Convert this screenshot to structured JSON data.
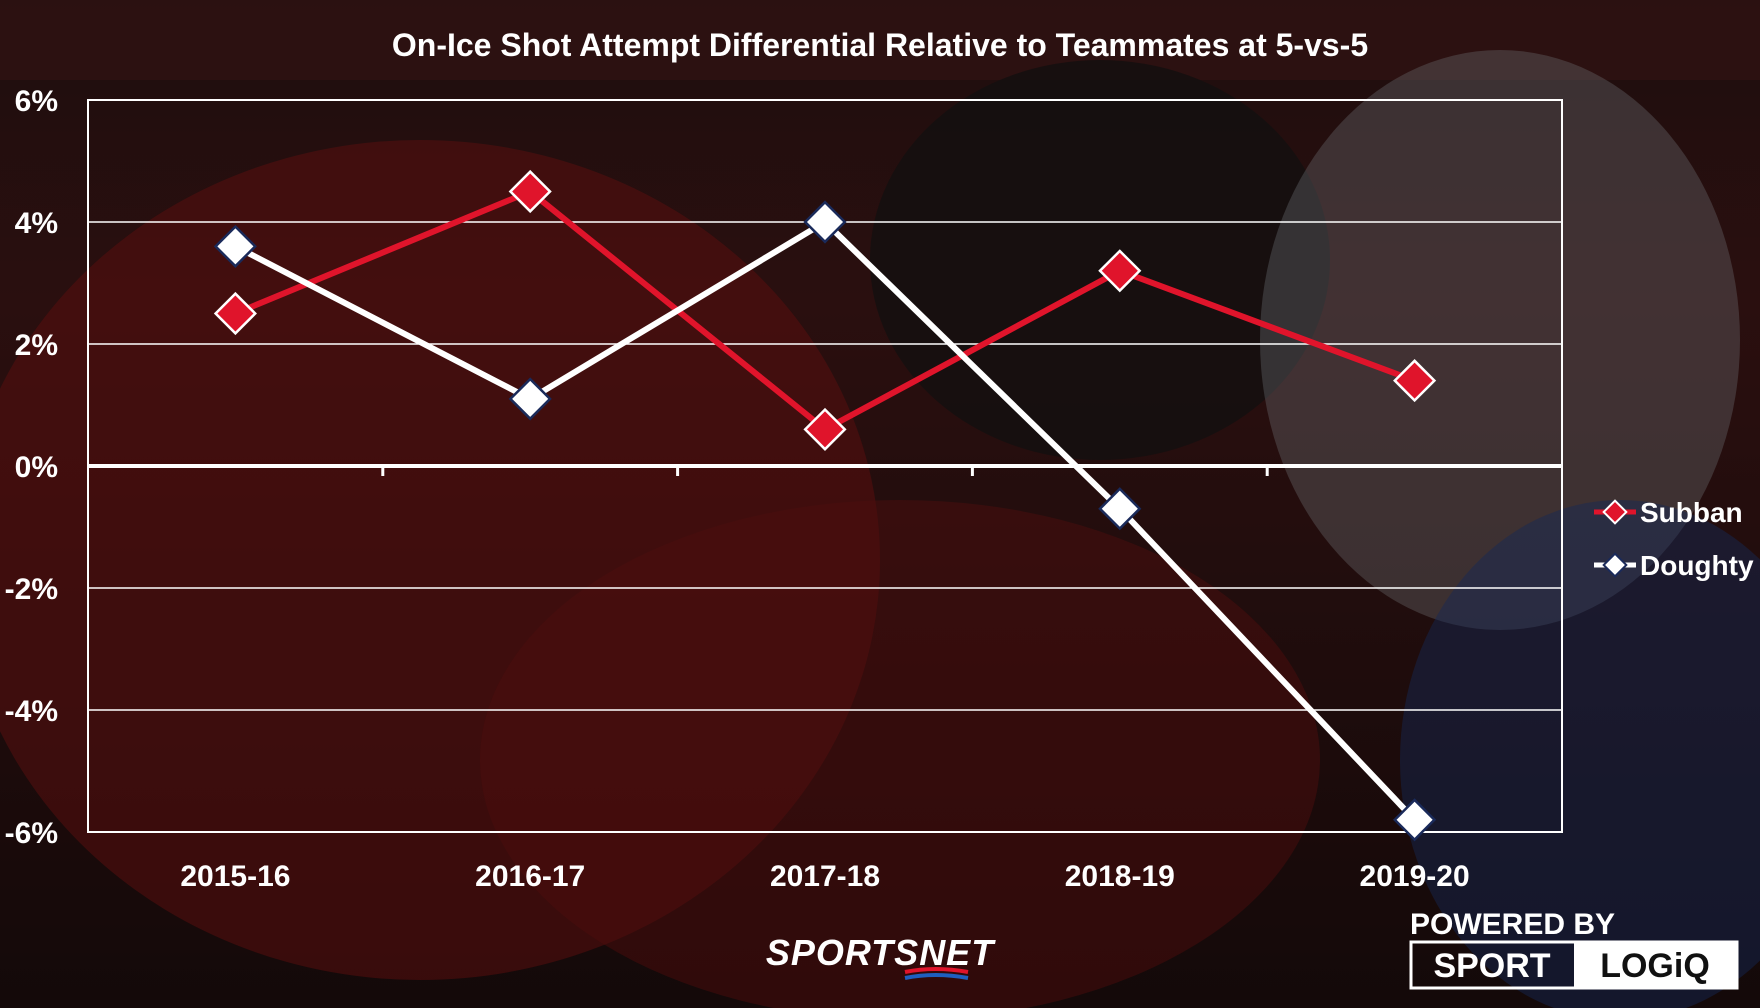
{
  "chart_data": {
    "type": "line",
    "title": "On-Ice Shot Attempt Differential Relative to Teammates at 5-vs-5",
    "categories": [
      "2015-16",
      "2016-17",
      "2017-18",
      "2018-19",
      "2019-20"
    ],
    "y_ticks": [
      "6%",
      "4%",
      "2%",
      "0%",
      "-2%",
      "-4%",
      "-6%"
    ],
    "ylim": [
      -6,
      6
    ],
    "y_unit": "%",
    "grid": true,
    "legend_position": "right",
    "series": [
      {
        "name": "Subban",
        "color": "#e0142b",
        "values": [
          2.5,
          4.5,
          0.6,
          3.2,
          1.4
        ]
      },
      {
        "name": "Doughty",
        "color": "#ffffff",
        "values": [
          3.6,
          1.1,
          4.0,
          -0.7,
          -5.8
        ]
      }
    ]
  },
  "branding": {
    "network": "SPORTSNET",
    "powered_by": "POWERED BY",
    "partner_left": "SPORT",
    "partner_right": "LOGiQ"
  },
  "colors": {
    "subban": "#e0142b",
    "doughty": "#ffffff",
    "grid": "#ffffff",
    "network_accent_blue": "#1e5fbf",
    "network_accent_red": "#e0142b"
  }
}
